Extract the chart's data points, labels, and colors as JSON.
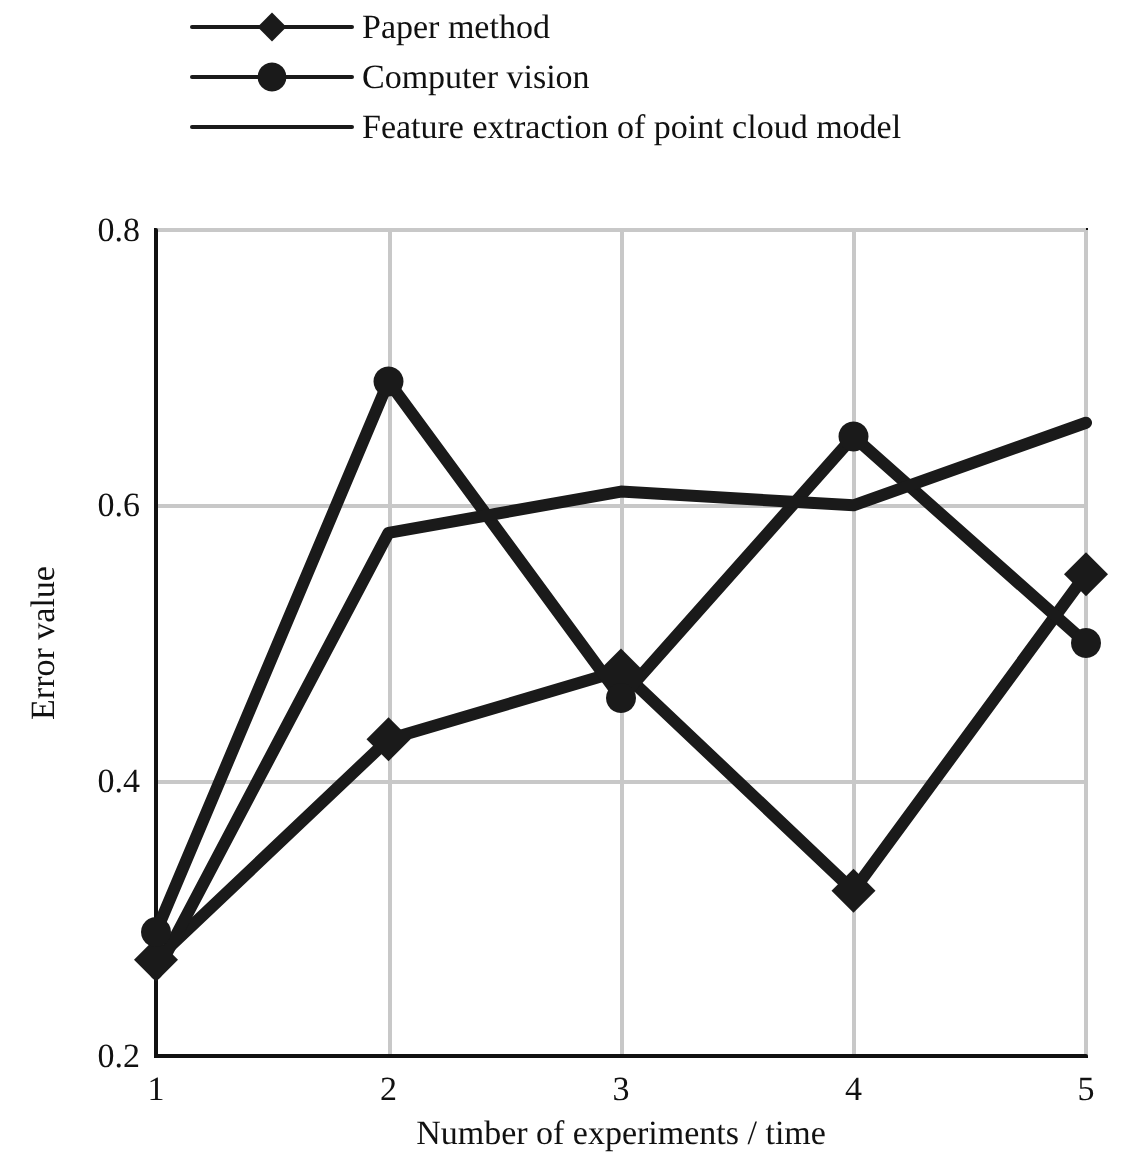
{
  "chart_data": {
    "type": "line",
    "xlabel": "Number of experiments / time",
    "ylabel": "Error value",
    "x": [
      1,
      2,
      3,
      4,
      5
    ],
    "xlim": [
      1,
      5
    ],
    "xticks": [
      1,
      2,
      3,
      4,
      5
    ],
    "ylim": [
      0.2,
      0.8
    ],
    "yticks": [
      0.2,
      0.4,
      0.6,
      0.8
    ],
    "grid": true,
    "legend": "top",
    "line_style": "solid",
    "series": [
      {
        "name": "Paper method",
        "color": "#1a1a1a",
        "marker": "diamond",
        "values": [
          0.27,
          0.43,
          0.48,
          0.32,
          0.55
        ]
      },
      {
        "name": "Computer vision",
        "color": "#1a1a1a",
        "marker": "circle",
        "values": [
          0.29,
          0.69,
          0.46,
          0.65,
          0.5
        ]
      },
      {
        "name": "Feature extraction of point cloud model",
        "color": "#1a1a1a",
        "marker": "none",
        "values": [
          0.26,
          0.58,
          0.61,
          0.6,
          0.66
        ]
      }
    ]
  }
}
